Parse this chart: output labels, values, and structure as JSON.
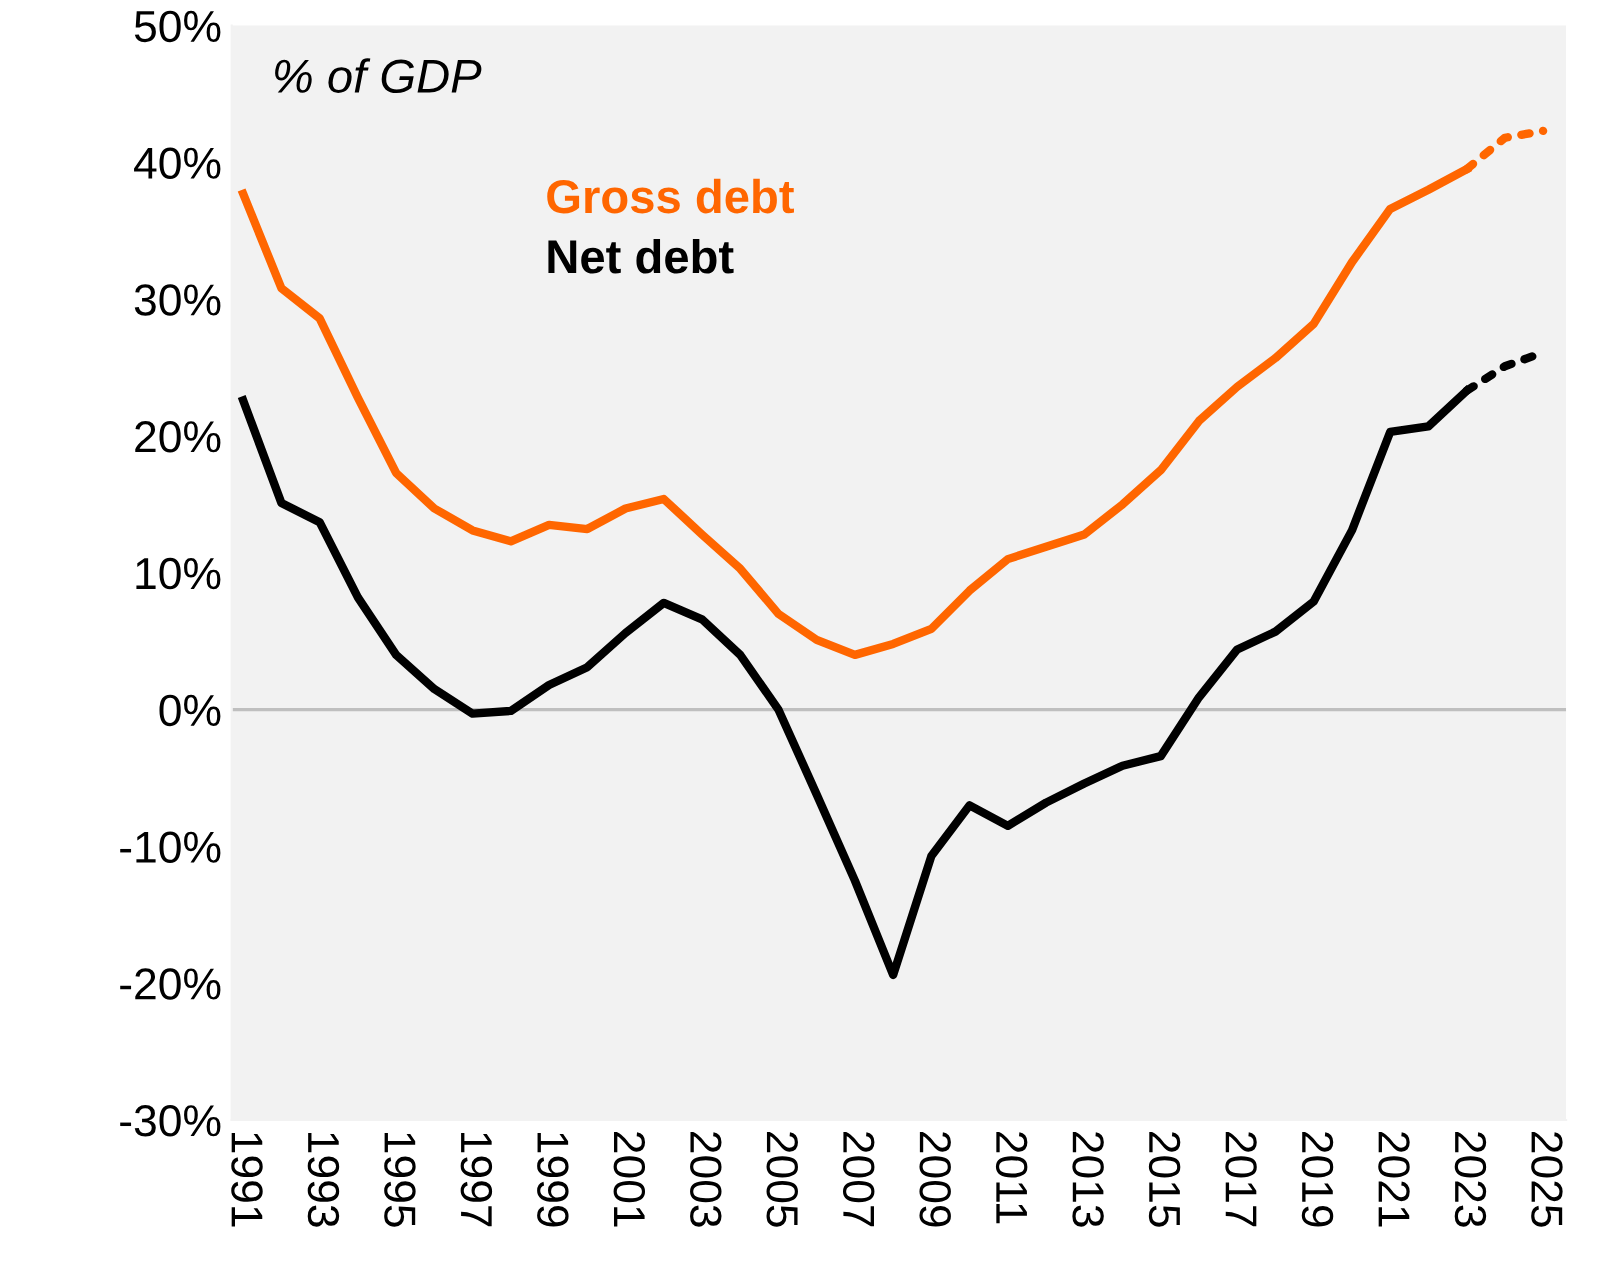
{
  "chart_data": {
    "type": "line",
    "annotations": [
      "% of GDP"
    ],
    "series": [
      {
        "name": "Gross debt",
        "color": "#ff6600",
        "line_style": "solid",
        "x": [
          1991,
          1992,
          1993,
          1994,
          1995,
          1996,
          1997,
          1998,
          1999,
          2000,
          2001,
          2002,
          2003,
          2004,
          2005,
          2006,
          2007,
          2008,
          2009,
          2010,
          2011,
          2012,
          2013,
          2014,
          2015,
          2016,
          2017,
          2018,
          2019,
          2020,
          2021,
          2022,
          2023
        ],
        "values": [
          37.7,
          30.8,
          28.6,
          22.8,
          17.3,
          14.7,
          13.1,
          12.3,
          13.5,
          13.2,
          14.7,
          15.4,
          12.8,
          10.3,
          7.0,
          5.1,
          4.0,
          4.8,
          5.9,
          8.7,
          11.0,
          11.9,
          12.8,
          15.0,
          17.5,
          21.1,
          23.6,
          25.7,
          28.2,
          32.7,
          36.6,
          38.0,
          39.5
        ]
      },
      {
        "name": "Net debt",
        "color": "#000000",
        "line_style": "solid",
        "x": [
          1991,
          1992,
          1993,
          1994,
          1995,
          1996,
          1997,
          1998,
          1999,
          2000,
          2001,
          2002,
          2003,
          2004,
          2005,
          2006,
          2007,
          2008,
          2009,
          2010,
          2011,
          2012,
          2013,
          2014,
          2015,
          2016,
          2017,
          2018,
          2019,
          2020,
          2021,
          2022,
          2023
        ],
        "values": [
          22.6,
          15.1,
          13.7,
          8.2,
          4.0,
          1.5,
          -0.3,
          -0.1,
          1.8,
          3.1,
          5.6,
          7.8,
          6.6,
          4.0,
          0.0,
          -6.2,
          -12.5,
          -19.4,
          -10.7,
          -7.0,
          -8.5,
          -6.8,
          -5.4,
          -4.1,
          -3.4,
          0.9,
          4.4,
          5.7,
          7.9,
          13.1,
          20.3,
          20.7,
          23.3
        ]
      },
      {
        "color": "#ff6600",
        "line_style": "dotted",
        "x": [
          2023,
          2024,
          2025
        ],
        "values": [
          39.5,
          41.8,
          42.3
        ]
      },
      {
        "color": "#000000",
        "line_style": "dotted",
        "x": [
          2023,
          2024,
          2025
        ],
        "values": [
          23.3,
          25.1,
          26.1
        ]
      }
    ],
    "xlim": [
      1990.7,
      2025.6
    ],
    "xticks": [
      1991,
      1993,
      1995,
      1997,
      1999,
      2001,
      2003,
      2005,
      2007,
      2009,
      2011,
      2013,
      2015,
      2017,
      2019,
      2021,
      2023,
      2025
    ],
    "ylim": [
      -30,
      50
    ],
    "yticks": [
      {
        "value": -30,
        "label": "-30%"
      },
      {
        "value": -20,
        "label": "-20%"
      },
      {
        "value": -10,
        "label": "-10%"
      },
      {
        "value": 0,
        "label": "0%"
      },
      {
        "value": 10,
        "label": "10%"
      },
      {
        "value": 20,
        "label": "20%"
      },
      {
        "value": 30,
        "label": "30%"
      },
      {
        "value": 40,
        "label": "40%"
      },
      {
        "value": 50,
        "label": "50%"
      }
    ],
    "ref_lines": [
      {
        "axis": "y",
        "value": 0,
        "color": "#bfbfbf"
      }
    ],
    "grid": false,
    "legend": false,
    "marker": "none"
  }
}
